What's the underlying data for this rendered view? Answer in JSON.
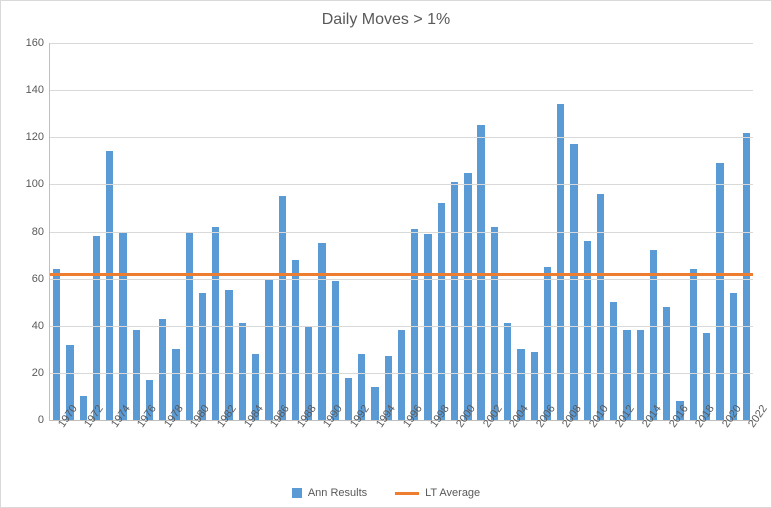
{
  "chart": {
    "type": "bar-with-line",
    "title": "Daily Moves > 1%",
    "title_fontsize": 16,
    "title_color": "#595959",
    "background_color": "#ffffff",
    "border_color": "#d9d9d9",
    "grid_color": "#d9d9d9",
    "axis_color": "#bfbfbf",
    "label_color": "#595959",
    "label_fontsize": 11,
    "ylim": [
      0,
      160
    ],
    "ytick_step": 20,
    "yticks": [
      0,
      20,
      40,
      60,
      80,
      100,
      120,
      140,
      160
    ],
    "x_categories": [
      "1970",
      "1971",
      "1972",
      "1973",
      "1974",
      "1975",
      "1976",
      "1977",
      "1978",
      "1979",
      "1980",
      "1981",
      "1982",
      "1983",
      "1984",
      "1985",
      "1986",
      "1987",
      "1988",
      "1989",
      "1990",
      "1991",
      "1992",
      "1993",
      "1994",
      "1995",
      "1996",
      "1997",
      "1998",
      "1999",
      "2000",
      "2001",
      "2002",
      "2003",
      "2004",
      "2005",
      "2006",
      "2007",
      "2008",
      "2009",
      "2010",
      "2011",
      "2012",
      "2013",
      "2014",
      "2015",
      "2016",
      "2017",
      "2018",
      "2019",
      "2020",
      "2021",
      "2022"
    ],
    "x_tick_labels": [
      "1970",
      "1972",
      "1974",
      "1976",
      "1978",
      "1980",
      "1982",
      "1984",
      "1986",
      "1988",
      "1990",
      "1992",
      "1994",
      "1996",
      "1998",
      "2000",
      "2002",
      "2004",
      "2006",
      "2008",
      "2010",
      "2012",
      "2014",
      "2016",
      "2018",
      "2020",
      "2022"
    ],
    "bars": {
      "color": "#5b9bd5",
      "width": 0.55,
      "values": [
        64,
        32,
        10,
        78,
        114,
        80,
        38,
        17,
        43,
        30,
        80,
        54,
        82,
        55,
        41,
        28,
        60,
        95,
        68,
        40,
        75,
        59,
        18,
        28,
        14,
        27,
        38,
        81,
        79,
        92,
        101,
        105,
        125,
        82,
        41,
        30,
        29,
        65,
        134,
        117,
        76,
        96,
        50,
        38,
        38,
        72,
        48,
        8,
        64,
        37,
        109,
        54,
        122
      ]
    },
    "line": {
      "label": "LT Average",
      "color": "#ed7d31",
      "value": 62,
      "width": 3
    },
    "legend": {
      "items": [
        {
          "label": "Ann Results",
          "type": "bar",
          "color": "#5b9bd5"
        },
        {
          "label": "LT Average",
          "type": "line",
          "color": "#ed7d31"
        }
      ]
    }
  }
}
